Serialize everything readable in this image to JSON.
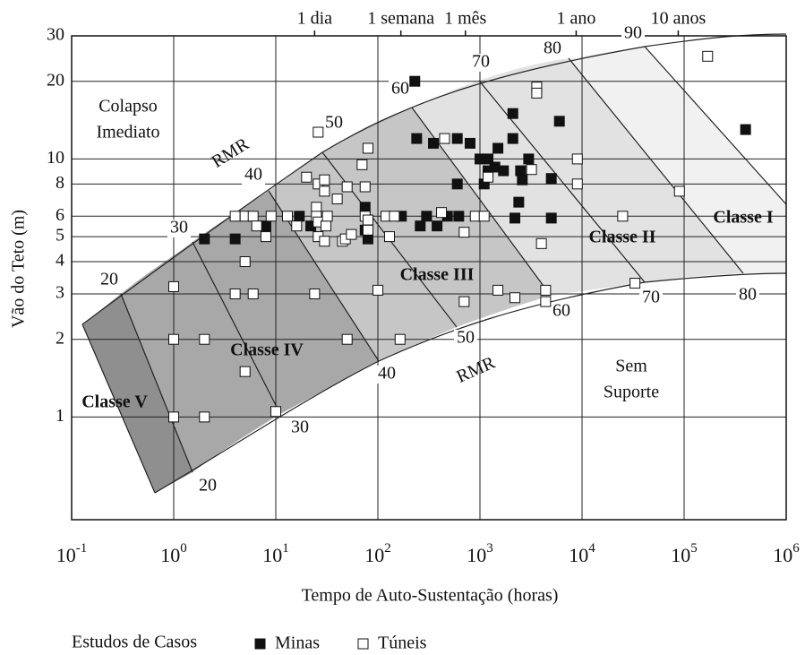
{
  "chart_data": {
    "type": "scatter",
    "x_label": "Tempo de Auto-Sustentação (horas)",
    "y_label": "Vão do Teto (m)",
    "x_log": true,
    "y_log": true,
    "grid": true,
    "xlim": [
      0.1,
      1000000
    ],
    "ylim": [
      0.4,
      30
    ],
    "xticks": [
      {
        "value": 0.1,
        "label": "10",
        "exponent": "-1"
      },
      {
        "value": 1,
        "label": "10",
        "exponent": "0"
      },
      {
        "value": 10,
        "label": "10",
        "exponent": "1"
      },
      {
        "value": 100,
        "label": "10",
        "exponent": "2"
      },
      {
        "value": 1000,
        "label": "10",
        "exponent": "3"
      },
      {
        "value": 10000,
        "label": "10",
        "exponent": "4"
      },
      {
        "value": 100000,
        "label": "10",
        "exponent": "5"
      },
      {
        "value": 1000000,
        "label": "10",
        "exponent": "6"
      }
    ],
    "yticks": [
      1,
      2,
      3,
      4,
      5,
      6,
      8,
      10,
      20,
      30
    ],
    "top_ticks": [
      {
        "value": 24,
        "label": "1 dia"
      },
      {
        "value": 168,
        "label": "1 semana"
      },
      {
        "value": 720,
        "label": "1 mês"
      },
      {
        "value": 8760,
        "label": "1 ano"
      },
      {
        "value": 87600,
        "label": "10 anos"
      }
    ],
    "legend_title": "Estudos de Casos",
    "series": [
      {
        "name": "Minas",
        "marker": "filled",
        "color": "#111111",
        "x": [
          2,
          4,
          8,
          17,
          22,
          75,
          75,
          80,
          170,
          230,
          240,
          260,
          300,
          350,
          380,
          480,
          600,
          600,
          620,
          800,
          1000,
          1200,
          1200,
          1100,
          1400,
          1500,
          1700,
          2100,
          2100,
          2200,
          2500,
          2600,
          2400,
          3000,
          6000,
          5000,
          5000,
          400000
        ],
        "values": [
          4.9,
          4.9,
          5.5,
          6,
          5.5,
          6.5,
          5.3,
          4.9,
          6,
          20,
          12,
          5.5,
          6,
          11.5,
          5.5,
          6,
          12,
          8,
          6,
          11.5,
          10,
          10,
          9,
          8,
          9.3,
          11,
          9,
          12,
          15,
          5.9,
          9,
          8.3,
          6.8,
          10,
          14,
          8.4,
          5.9,
          13
        ]
      },
      {
        "name": "Túneis",
        "marker": "open",
        "color": "#111111",
        "x": [
          1,
          1,
          1,
          2,
          2,
          4,
          4,
          5,
          5,
          5,
          6,
          6,
          6.5,
          8,
          9,
          13,
          16,
          20,
          25,
          26,
          26,
          25,
          26,
          26,
          24,
          30,
          30,
          31,
          32,
          30,
          40,
          45,
          48,
          50,
          55,
          50,
          70,
          75,
          75,
          80,
          80,
          80,
          100,
          120,
          130,
          145,
          165,
          450,
          420,
          700,
          700,
          900,
          1100,
          1200,
          1500,
          2200,
          3200,
          3600,
          3600,
          4000,
          4400,
          4400,
          9000,
          9000,
          25000,
          33000,
          90000,
          170000,
          10
        ],
        "values": [
          3.2,
          2,
          1,
          2,
          1,
          6,
          3,
          6,
          4,
          1.5,
          6,
          3,
          5.5,
          5,
          6,
          6,
          5.5,
          8.5,
          6.5,
          12.7,
          8,
          6,
          5.7,
          5,
          3,
          7.5,
          8.3,
          5.5,
          6,
          4.8,
          7,
          4.8,
          4.9,
          7.8,
          5.1,
          2,
          9.5,
          7.8,
          6,
          5.8,
          11,
          5.3,
          3.1,
          6,
          5,
          6,
          2,
          12,
          6.2,
          5.2,
          2.8,
          6,
          6,
          8.5,
          3.1,
          2.9,
          9.1,
          19,
          18,
          4.7,
          3.1,
          2.8,
          10,
          8,
          6,
          3.3,
          7.5,
          25,
          1.05
        ]
      }
    ],
    "regions": [
      "Classe V",
      "Classe IV",
      "Classe III",
      "Classe II",
      "Classe I"
    ],
    "zone_labels": {
      "collapse": [
        "Colapso",
        "Imediato"
      ],
      "unsupported": [
        "Sem",
        "Suporte"
      ]
    },
    "rmr_label": "RMR",
    "rmr_upper_labels": [
      20,
      30,
      40,
      50,
      60,
      70,
      80,
      90
    ],
    "rmr_lower_labels": [
      20,
      30,
      40,
      50,
      60,
      70,
      80
    ]
  }
}
